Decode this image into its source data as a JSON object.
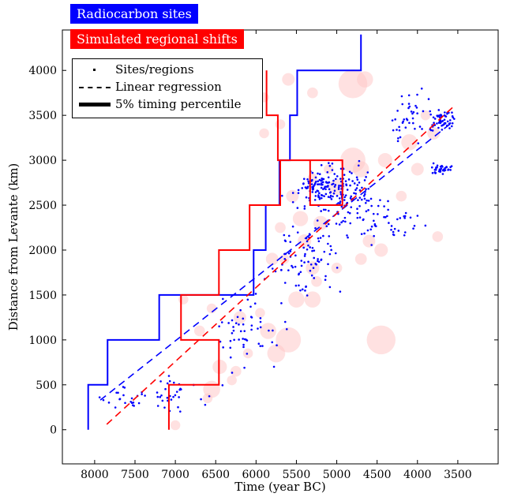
{
  "labels": {
    "radiocarbon_tag": "Radiocarbon sites",
    "simulated_tag": "Simulated regional shifts"
  },
  "legend": [
    {
      "label": "Sites/regions",
      "style": "dot"
    },
    {
      "label": "Linear regression",
      "style": "dashed"
    },
    {
      "label": "5% timing percentile",
      "style": "thick"
    }
  ],
  "colors": {
    "radiocarbon": "#0000ff",
    "simulated": "#ff0000",
    "circles": "#ffc8c8"
  },
  "chart_data": {
    "type": "scatter",
    "xlabel": "Time (year BC)",
    "ylabel": "Distance from Levante (km)",
    "x_reversed": true,
    "xlim": [
      8400,
      3000
    ],
    "ylim": [
      -380,
      4450
    ],
    "xticks": [
      8000,
      7500,
      7000,
      6500,
      6000,
      5500,
      5000,
      4500,
      4000,
      3500
    ],
    "yticks": [
      0,
      500,
      1000,
      1500,
      2000,
      2500,
      3000,
      3500,
      4000
    ],
    "series": [
      {
        "name": "Radiocarbon sites",
        "kind": "step",
        "color": "#0000ff",
        "points": [
          [
            8080,
            0
          ],
          [
            8080,
            500
          ],
          [
            7840,
            500
          ],
          [
            7840,
            1000
          ],
          [
            7200,
            1000
          ],
          [
            7200,
            1500
          ],
          [
            6030,
            1500
          ],
          [
            6030,
            2000
          ],
          [
            5880,
            2000
          ],
          [
            5880,
            2500
          ],
          [
            5710,
            2500
          ],
          [
            5710,
            3000
          ],
          [
            5580,
            3000
          ],
          [
            5580,
            3500
          ],
          [
            5490,
            3500
          ],
          [
            5490,
            4000
          ],
          [
            4700,
            4000
          ],
          [
            4700,
            4400
          ]
        ]
      },
      {
        "name": "Simulated regional shifts",
        "kind": "step",
        "color": "#ff0000",
        "points": [
          [
            7080,
            0
          ],
          [
            7080,
            500
          ],
          [
            6460,
            500
          ],
          [
            6460,
            1000
          ],
          [
            6930,
            1000
          ],
          [
            6930,
            1500
          ],
          [
            6460,
            1500
          ],
          [
            6460,
            2000
          ],
          [
            6080,
            2000
          ],
          [
            6080,
            2500
          ],
          [
            5700,
            2500
          ],
          [
            5700,
            3000
          ],
          [
            4930,
            3000
          ],
          [
            4930,
            2500
          ],
          [
            5330,
            2500
          ],
          [
            5330,
            3000
          ],
          [
            5730,
            3000
          ],
          [
            5730,
            3500
          ],
          [
            5870,
            3500
          ],
          [
            5870,
            4000
          ]
        ]
      },
      {
        "name": "Linear regression (radiocarbon)",
        "kind": "dashed",
        "color": "#0000ff",
        "points": [
          [
            7930,
            330
          ],
          [
            3600,
            3400
          ]
        ]
      },
      {
        "name": "Linear regression (simulated)",
        "kind": "dashed",
        "color": "#ff0000",
        "points": [
          [
            7850,
            60
          ],
          [
            3550,
            3600
          ]
        ]
      }
    ],
    "circles": [
      {
        "x": 4800,
        "y": 3850,
        "r": 160
      },
      {
        "x": 4650,
        "y": 3900,
        "r": 90
      },
      {
        "x": 5600,
        "y": 3900,
        "r": 70
      },
      {
        "x": 5300,
        "y": 3750,
        "r": 60
      },
      {
        "x": 5900,
        "y": 3700,
        "r": 55
      },
      {
        "x": 5700,
        "y": 3400,
        "r": 55
      },
      {
        "x": 5900,
        "y": 3300,
        "r": 55
      },
      {
        "x": 4800,
        "y": 3000,
        "r": 140
      },
      {
        "x": 4700,
        "y": 2900,
        "r": 90
      },
      {
        "x": 5000,
        "y": 2700,
        "r": 90
      },
      {
        "x": 4400,
        "y": 3000,
        "r": 80
      },
      {
        "x": 4100,
        "y": 3200,
        "r": 90
      },
      {
        "x": 4200,
        "y": 2600,
        "r": 60
      },
      {
        "x": 4000,
        "y": 2900,
        "r": 70
      },
      {
        "x": 3900,
        "y": 3500,
        "r": 55
      },
      {
        "x": 3800,
        "y": 3300,
        "r": 70
      },
      {
        "x": 3750,
        "y": 2150,
        "r": 60
      },
      {
        "x": 5200,
        "y": 2300,
        "r": 80
      },
      {
        "x": 5400,
        "y": 2100,
        "r": 75
      },
      {
        "x": 5450,
        "y": 2350,
        "r": 85
      },
      {
        "x": 5550,
        "y": 2600,
        "r": 70
      },
      {
        "x": 5700,
        "y": 2250,
        "r": 60
      },
      {
        "x": 5300,
        "y": 1800,
        "r": 75
      },
      {
        "x": 5000,
        "y": 1800,
        "r": 60
      },
      {
        "x": 4700,
        "y": 1900,
        "r": 65
      },
      {
        "x": 4600,
        "y": 2100,
        "r": 70
      },
      {
        "x": 4450,
        "y": 2000,
        "r": 75
      },
      {
        "x": 5800,
        "y": 1900,
        "r": 70
      },
      {
        "x": 5650,
        "y": 1900,
        "r": 55
      },
      {
        "x": 5500,
        "y": 1450,
        "r": 90
      },
      {
        "x": 5300,
        "y": 1450,
        "r": 90
      },
      {
        "x": 5250,
        "y": 1650,
        "r": 60
      },
      {
        "x": 5850,
        "y": 1100,
        "r": 90
      },
      {
        "x": 5600,
        "y": 1000,
        "r": 140
      },
      {
        "x": 5750,
        "y": 850,
        "r": 100
      },
      {
        "x": 5950,
        "y": 1300,
        "r": 55
      },
      {
        "x": 6200,
        "y": 1250,
        "r": 70
      },
      {
        "x": 6100,
        "y": 850,
        "r": 55
      },
      {
        "x": 6250,
        "y": 650,
        "r": 60
      },
      {
        "x": 6450,
        "y": 700,
        "r": 80
      },
      {
        "x": 6550,
        "y": 450,
        "r": 95
      },
      {
        "x": 6600,
        "y": 350,
        "r": 55
      },
      {
        "x": 6300,
        "y": 550,
        "r": 55
      },
      {
        "x": 6900,
        "y": 1450,
        "r": 55
      },
      {
        "x": 6700,
        "y": 1100,
        "r": 60
      },
      {
        "x": 6550,
        "y": 1350,
        "r": 55
      },
      {
        "x": 7000,
        "y": 50,
        "r": 55
      },
      {
        "x": 4450,
        "y": 1000,
        "r": 160
      },
      {
        "x": 5100,
        "y": 2900,
        "r": 55
      },
      {
        "x": 5300,
        "y": 2800,
        "r": 55
      }
    ],
    "sites_note": "Approximately 600 blue site points; rendered from deterministic clusters below.",
    "site_clusters": [
      {
        "x": 5150,
        "y": 2700,
        "sx": 450,
        "sy": 230,
        "n": 140
      },
      {
        "x": 4750,
        "y": 2500,
        "sx": 450,
        "sy": 450,
        "n": 90
      },
      {
        "x": 5350,
        "y": 1950,
        "sx": 500,
        "sy": 500,
        "n": 90
      },
      {
        "x": 3700,
        "y": 3450,
        "sx": 170,
        "sy": 120,
        "n": 60
      },
      {
        "x": 3700,
        "y": 2900,
        "sx": 170,
        "sy": 60,
        "n": 40
      },
      {
        "x": 4100,
        "y": 3500,
        "sx": 350,
        "sy": 300,
        "n": 40
      },
      {
        "x": 6100,
        "y": 1100,
        "sx": 500,
        "sy": 450,
        "n": 55
      },
      {
        "x": 7100,
        "y": 400,
        "sx": 450,
        "sy": 200,
        "n": 35
      },
      {
        "x": 7700,
        "y": 350,
        "sx": 300,
        "sy": 150,
        "n": 20
      },
      {
        "x": 4300,
        "y": 2300,
        "sx": 350,
        "sy": 300,
        "n": 30
      }
    ]
  }
}
